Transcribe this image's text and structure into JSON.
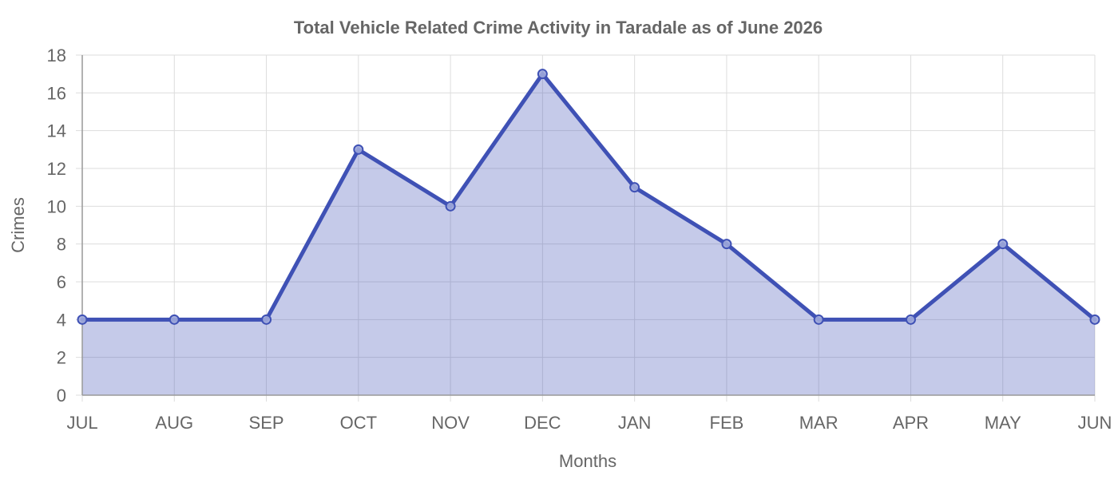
{
  "chart_data": {
    "type": "area",
    "title": "Total Vehicle Related Crime Activity in Taradale as of June 2026",
    "xlabel": "Months",
    "ylabel": "Crimes",
    "categories": [
      "JUL",
      "AUG",
      "SEP",
      "OCT",
      "NOV",
      "DEC",
      "JAN",
      "FEB",
      "MAR",
      "APR",
      "MAY",
      "JUN"
    ],
    "series": [
      {
        "values": [
          4,
          4,
          4,
          13,
          10,
          17,
          11,
          8,
          4,
          4,
          8,
          4
        ],
        "line_color": "#3f51b5",
        "fill_color": "#3f51b5",
        "fill_opacity": 0.3
      }
    ],
    "ylim": [
      0,
      18
    ],
    "yticks": [
      0,
      2,
      4,
      6,
      8,
      10,
      12,
      14,
      16,
      18
    ],
    "grid": true,
    "legend": "none",
    "colors": {
      "grid": "#dddddd",
      "axis": "#999999",
      "text": "#666666"
    }
  }
}
